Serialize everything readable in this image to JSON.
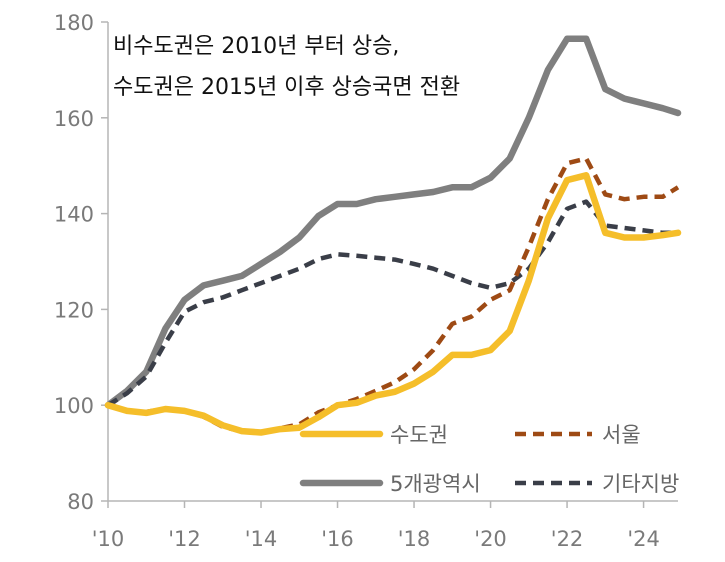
{
  "chart_data": {
    "type": "line",
    "title": "",
    "annotation": [
      "비수도권은 2010년 부터 상승,",
      "수도권은 2015년 이후 상승국면 전환"
    ],
    "xlabel": "",
    "ylabel": "",
    "x_ticks": [
      2010,
      2012,
      2014,
      2016,
      2018,
      2020,
      2022,
      2024
    ],
    "x_tick_labels": [
      "'10",
      "'12",
      "'14",
      "'16",
      "'18",
      "'20",
      "'22",
      "'24"
    ],
    "y_ticks": [
      80,
      100,
      120,
      140,
      160,
      180
    ],
    "y_tick_labels": [
      "80",
      "100",
      "120",
      "140",
      "160",
      "180"
    ],
    "xlim": [
      2010,
      2024.9
    ],
    "ylim": [
      80,
      180
    ],
    "grid": false,
    "legend_position": "lower-right",
    "series": [
      {
        "name": "수도권",
        "color": "#F5BE2A",
        "style": "solid",
        "x": [
          2010,
          2010.5,
          2011,
          2011.5,
          2012,
          2012.5,
          2013,
          2013.5,
          2014,
          2014.5,
          2015,
          2015.5,
          2016,
          2016.5,
          2017,
          2017.5,
          2018,
          2018.5,
          2019,
          2019.5,
          2020,
          2020.5,
          2021,
          2021.5,
          2022,
          2022.5,
          2023,
          2023.5,
          2024,
          2024.5,
          2024.9
        ],
        "y": [
          100,
          98.8,
          98.4,
          99.2,
          98.8,
          97.8,
          95.8,
          94.6,
          94.3,
          95,
          95.3,
          97.5,
          100,
          100.5,
          102,
          102.8,
          104.5,
          107,
          110.5,
          110.5,
          111.5,
          115.5,
          126,
          139,
          147,
          148,
          136,
          135,
          135,
          135.5,
          136
        ]
      },
      {
        "name": "서울",
        "color": "#9E4A14",
        "style": "dashed",
        "x": [
          2010,
          2010.5,
          2011,
          2011.5,
          2012,
          2012.5,
          2013,
          2013.5,
          2014,
          2014.5,
          2015,
          2015.5,
          2016,
          2016.5,
          2017,
          2017.5,
          2018,
          2018.5,
          2019,
          2019.5,
          2020,
          2020.5,
          2021,
          2021.5,
          2022,
          2022.5,
          2023,
          2023.5,
          2024,
          2024.5,
          2024.9
        ],
        "y": [
          100,
          98.8,
          98.6,
          99.3,
          98.8,
          97.6,
          95.5,
          94.5,
          94.3,
          95.2,
          96,
          98.5,
          100,
          101.3,
          103,
          104.8,
          107.5,
          111.5,
          117,
          118.5,
          122,
          124,
          133,
          143,
          150.5,
          151.5,
          144,
          143,
          143.5,
          143.5,
          145.5
        ]
      },
      {
        "name": "5개광역시",
        "color": "#7F7F7F",
        "style": "solid",
        "x": [
          2010,
          2010.5,
          2011,
          2011.5,
          2012,
          2012.5,
          2013,
          2013.5,
          2014,
          2014.5,
          2015,
          2015.5,
          2016,
          2016.5,
          2017,
          2017.5,
          2018,
          2018.5,
          2019,
          2019.5,
          2020,
          2020.5,
          2021,
          2021.5,
          2022,
          2022.5,
          2023,
          2023.5,
          2024,
          2024.5,
          2024.9
        ],
        "y": [
          100,
          103,
          107,
          116,
          122,
          125,
          126,
          127,
          129.5,
          132,
          135,
          139.5,
          142,
          142,
          143,
          143.5,
          144,
          144.5,
          145.5,
          145.5,
          147.5,
          151.5,
          160,
          170,
          176.5,
          176.5,
          166,
          164,
          163,
          162,
          161
        ]
      },
      {
        "name": "기타지방",
        "color": "#3A3E48",
        "style": "dashed",
        "x": [
          2010,
          2010.5,
          2011,
          2011.5,
          2012,
          2012.5,
          2013,
          2013.5,
          2014,
          2014.5,
          2015,
          2015.5,
          2016,
          2016.5,
          2017,
          2017.5,
          2018,
          2018.5,
          2019,
          2019.5,
          2020,
          2020.5,
          2021,
          2021.5,
          2022,
          2022.5,
          2023,
          2023.5,
          2024,
          2024.5,
          2024.9
        ],
        "y": [
          100,
          102.5,
          106,
          113,
          119.5,
          121.5,
          122.5,
          124,
          125.5,
          127,
          128.5,
          130.5,
          131.5,
          131.2,
          130.8,
          130.4,
          129.5,
          128.5,
          127,
          125.5,
          124.5,
          125.5,
          128.5,
          134,
          141,
          142.5,
          137.5,
          137,
          136.5,
          136,
          136
        ]
      }
    ]
  }
}
